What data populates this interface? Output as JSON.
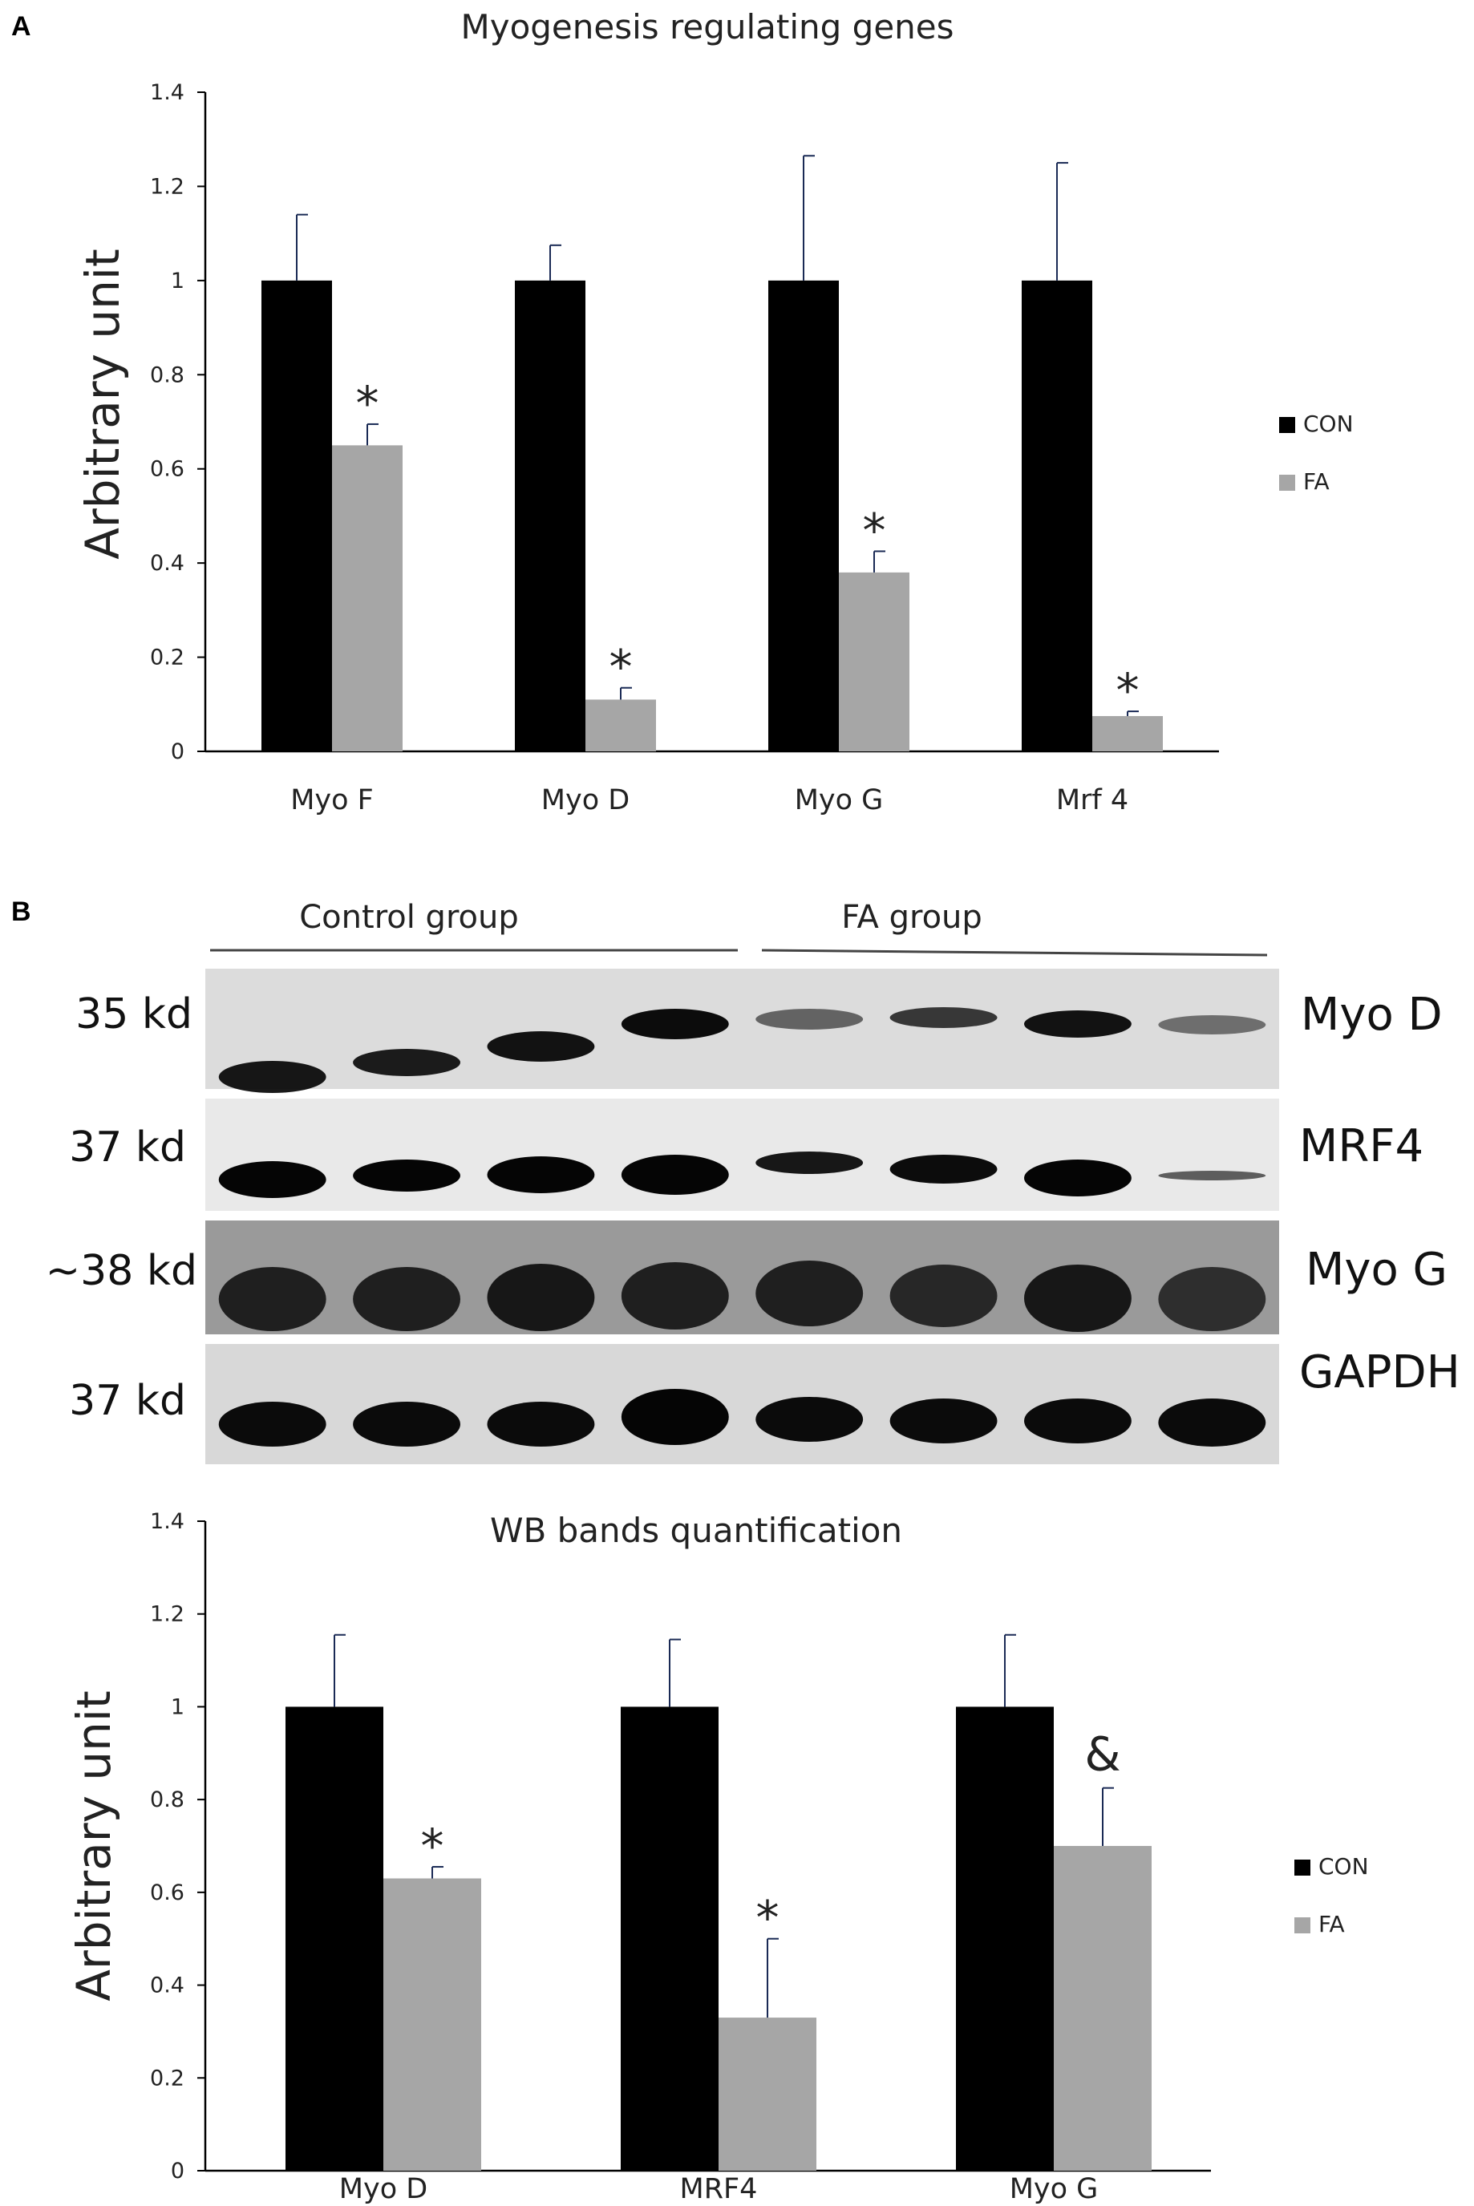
{
  "panel_a": {
    "letter": "A",
    "chart_data": {
      "type": "bar",
      "title": "Myogenesis regulating genes",
      "ylabel": "Arbitrary unit",
      "xlabel": "",
      "ylim": [
        0,
        1.4
      ],
      "yticks": [
        "0",
        "0.2",
        "0.4",
        "0.6",
        "0.8",
        "1",
        "1.2",
        "1.4"
      ],
      "categories": [
        "Myo F",
        "Myo D",
        "Myo G",
        "Mrf 4"
      ],
      "series": [
        {
          "name": "CON",
          "color": "#000000",
          "values": [
            1,
            1,
            1,
            1
          ],
          "errors": [
            0.14,
            0.075,
            0.265,
            0.25
          ],
          "marks": [
            "",
            "",
            "",
            ""
          ]
        },
        {
          "name": "FA",
          "color": "#a6a6a6",
          "values": [
            0.65,
            0.11,
            0.38,
            0.075
          ],
          "errors": [
            0.045,
            0.025,
            0.045,
            0.01
          ],
          "marks": [
            "*",
            "*",
            "*",
            "*"
          ]
        }
      ],
      "legend_position": "right",
      "grid": false
    }
  },
  "panel_b": {
    "letter": "B",
    "blot": {
      "groups": [
        "Control group",
        "FA  group"
      ],
      "rows": [
        {
          "mw": "35 kd",
          "name": "Myo D"
        },
        {
          "mw": "37 kd",
          "name": "MRF4"
        },
        {
          "mw": "~38 kd",
          "name": "Myo G"
        },
        {
          "mw": "37 kd",
          "name": "GAPDH"
        }
      ]
    },
    "chart_data": {
      "type": "bar",
      "title": "WB bands quantification",
      "ylabel": "Arbitrary unit",
      "xlabel": "",
      "ylim": [
        0,
        1.4
      ],
      "yticks": [
        "0",
        "0.2",
        "0.4",
        "0.6",
        "0.8",
        "1",
        "1.2",
        "1.4"
      ],
      "categories": [
        "Myo D",
        "MRF4",
        "Myo G"
      ],
      "series": [
        {
          "name": "CON",
          "color": "#000000",
          "values": [
            1,
            1,
            1
          ],
          "errors": [
            0.155,
            0.145,
            0.155
          ],
          "marks": [
            "",
            "",
            ""
          ]
        },
        {
          "name": "FA",
          "color": "#a6a6a6",
          "values": [
            0.63,
            0.33,
            0.7
          ],
          "errors": [
            0.025,
            0.17,
            0.125
          ],
          "marks": [
            "*",
            "*",
            "&"
          ]
        }
      ],
      "legend_position": "right",
      "grid": false
    }
  }
}
